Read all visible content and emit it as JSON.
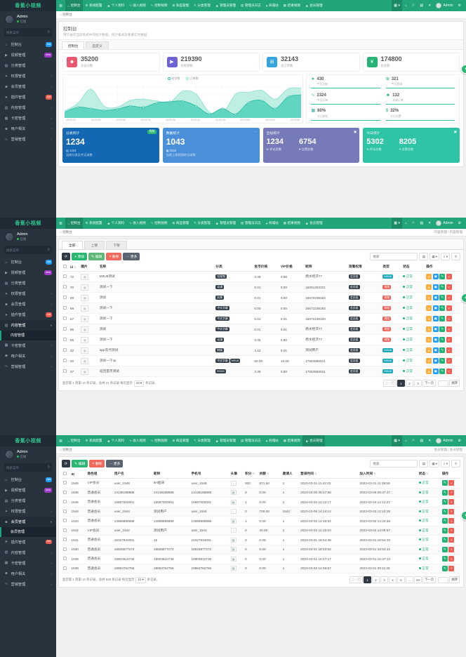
{
  "brand": "香蕉小视频",
  "navbar": {
    "items": [
      {
        "label": "控制台",
        "icon": "home"
      },
      {
        "label": "系统配置",
        "icon": "gear"
      },
      {
        "label": "个人资料",
        "icon": "user"
      },
      {
        "label": "收入视频",
        "icon": "chart"
      },
      {
        "label": "控制视频",
        "icon": "chart"
      },
      {
        "label": "商品管理",
        "icon": "bag"
      },
      {
        "label": "分类管理",
        "icon": "edit"
      },
      {
        "label": "管理员管理",
        "icon": "user"
      },
      {
        "label": "管理员日志",
        "icon": "list"
      },
      {
        "label": "商城站",
        "icon": "heart"
      },
      {
        "label": "结果视频",
        "icon": "grid"
      },
      {
        "label": "会员管理",
        "icon": "user"
      }
    ],
    "right_icons": [
      {
        "name": "apps-menu-icon",
        "glyph": "▦ ▾"
      },
      {
        "name": "home-icon",
        "glyph": "⌂"
      },
      {
        "name": "bell-icon",
        "glyph": "⚐"
      },
      {
        "name": "file-icon",
        "glyph": "▤"
      },
      {
        "name": "close-icon",
        "glyph": "✕"
      }
    ],
    "user": "Admin"
  },
  "sidebar": {
    "user_name": "Admin",
    "user_status": "在线",
    "search_placeholder": "搜索菜单",
    "items": [
      {
        "label": "控制台",
        "icon": "home",
        "badge": "hot",
        "badge_color": "#1e9fff"
      },
      {
        "label": "视频管理",
        "icon": "video",
        "badge": "new",
        "badge_color": "#a038c9"
      },
      {
        "label": "分类管理",
        "icon": "folder"
      },
      {
        "label": "权限管理",
        "icon": "lock",
        "arrow": true
      },
      {
        "label": "会员管理",
        "icon": "users",
        "arrow": true
      },
      {
        "label": "插件管理",
        "icon": "plugin",
        "badge": "hot",
        "badge_color": "#f35b4f"
      },
      {
        "label": "内容管理",
        "icon": "content",
        "arrow": true
      },
      {
        "label": "卡密管理",
        "icon": "card",
        "arrow": true
      },
      {
        "label": "用户相关",
        "icon": "user",
        "arrow": true
      },
      {
        "label": "营销管理",
        "icon": "chart",
        "arrow": true
      }
    ]
  },
  "panels": [
    {
      "nav_active": 0,
      "sidebar": {}
    },
    {
      "nav_active": 0,
      "sidebar": {
        "expanded": 6,
        "sub": [
          "内容管理"
        ],
        "sub_active": 0
      }
    },
    {
      "nav_active": 11,
      "sidebar": {
        "expanded": 4,
        "sub": [
          "会员管理"
        ],
        "sub_active": 0
      }
    }
  ],
  "panel1": {
    "breadcrumb": "控制台",
    "breadcrumb_right": "",
    "page_title": "控制台",
    "page_desc": "用于展示当前系统中的统计数据，统计报表及重要实时数据",
    "tabs": [
      "控制台",
      "自定义"
    ],
    "stats": [
      {
        "value": "35200",
        "label": "总会员数",
        "color": "#e8596f",
        "icon": "users"
      },
      {
        "value": "219390",
        "label": "总视频数",
        "color": "#6e62d4",
        "icon": "video"
      },
      {
        "value": "32143",
        "label": "总订单数",
        "color": "#35a3dc",
        "icon": "cart"
      },
      {
        "value": "174800",
        "label": "总金额",
        "color": "#27b376",
        "icon": "yen"
      }
    ],
    "chart_data": {
      "type": "area",
      "title": "",
      "x": [
        "16:03:22",
        "16:03:26",
        "16:03:30",
        "16:03:34",
        "16:03:38",
        "16:03:42",
        "16:03:46",
        "16:03:50",
        "16:03:54",
        "16:03:58"
      ],
      "series": [
        {
          "name": "成交数",
          "values": [
            14,
            30,
            26,
            20,
            24,
            34,
            30,
            44,
            48,
            50,
            34,
            8,
            26,
            8,
            46,
            52,
            26,
            64,
            70
          ],
          "line_color": "#2fbfa6",
          "fill_color": "#5bd3be"
        },
        {
          "name": "订单数",
          "values": [
            18,
            42,
            88,
            34,
            30,
            52,
            56,
            50,
            46,
            82,
            72,
            14,
            10,
            72,
            78,
            84,
            56,
            90,
            92
          ],
          "line_color": "#8fe0cf",
          "fill_color": "#bceee2"
        }
      ],
      "ylim": [
        0,
        100
      ],
      "grid": true,
      "legend_position": "top"
    },
    "mini_stats": [
      {
        "value": "430",
        "label": "今日注册",
        "icon": "rocket"
      },
      {
        "value": "321",
        "label": "今日登录",
        "icon": "cart"
      },
      {
        "value": "2324",
        "label": "今日订单",
        "icon": "trend"
      },
      {
        "value": "132",
        "label": "本周订单",
        "icon": "users"
      },
      {
        "value": "80%",
        "label": "七日转化",
        "icon": "calc"
      },
      {
        "value": "32%",
        "label": "七日付费",
        "icon": "dollar"
      }
    ],
    "summary_cards": [
      {
        "title": "分类统计",
        "badge": "视频",
        "value": "1234",
        "sub_line1": "1234",
        "sub_line1_icon": "folder",
        "sub_line2": "当前分类总共记录数",
        "color": "#1468b3"
      },
      {
        "title": "数据统计",
        "corner": "more",
        "value": "1043",
        "sub_line1": "2532",
        "sub_line1_icon": "grid",
        "sub_line2": "当前上架视频的记录数",
        "color": "#4a90d9"
      },
      {
        "title": "全站统计",
        "corner": "grid",
        "nums": [
          {
            "value": "1234",
            "label": "评论总数",
            "icon": "comment"
          },
          {
            "value": "6754",
            "label": "点赞总数",
            "icon": "like"
          }
        ],
        "color": "#767ab8"
      },
      {
        "title": "今日统计",
        "corner": "grid",
        "nums": [
          {
            "value": "5302",
            "label": "评论总数",
            "icon": "comment"
          },
          {
            "value": "8205",
            "label": "点赞总数",
            "icon": "like"
          }
        ],
        "color": "#2ec4a5"
      }
    ]
  },
  "table_tools": [
    {
      "name": "detail-view-button",
      "glyph": "▤"
    },
    {
      "name": "columns-button",
      "glyph": "▦ ▾"
    },
    {
      "name": "export-button",
      "glyph": "⇩ ▾"
    },
    {
      "name": "search-button",
      "glyph": "⚲"
    }
  ],
  "panel2": {
    "breadcrumb": "控制台",
    "breadcrumb_right": "内容管理 / 内容管理",
    "tabs": [
      "全部",
      "上架",
      "下架"
    ],
    "toolbar": [
      {
        "name": "refresh-button",
        "icon": "refresh",
        "style": "dark"
      },
      {
        "name": "add-button",
        "label": "添加",
        "icon": "plus",
        "style": "green"
      },
      {
        "name": "edit-button",
        "label": "编辑",
        "icon": "edit",
        "style": "lightgreen"
      },
      {
        "name": "delete-button",
        "label": "删除",
        "icon": "del",
        "style": "red"
      },
      {
        "name": "more-button",
        "label": "更多",
        "icon": "more",
        "style": "gray"
      }
    ],
    "search_placeholder": "搜索",
    "table": {
      "headers": [
        "id",
        "图片",
        "名称",
        "分类",
        "金币价格",
        "VIP价格",
        "昵称",
        "观看权限",
        "类型",
        "状态",
        "操作"
      ],
      "rows": [
        {
          "id": "72",
          "name": "M3U8测试",
          "cats": [
            "短视频"
          ],
          "coin": "3.38",
          "vip": "0.88",
          "nick": "扬水经济77",
          "perm": "会员组",
          "type": "M3U8",
          "type_style": "cyan",
          "status": "正常"
        },
        {
          "id": "70",
          "name": "测试一下",
          "cats": [
            "动漫"
          ],
          "coin": "0.01",
          "vip": "0.00",
          "nick": "15001203321",
          "perm": "会员组",
          "type": "视频",
          "type_style": "red",
          "status": "正常"
        },
        {
          "id": "69",
          "name": "测试",
          "cats": [
            "风景"
          ],
          "coin": "0.01",
          "vip": "0.00",
          "nick": "16672238183",
          "perm": "会员组",
          "type": "视频",
          "type_style": "red",
          "status": "正常"
        },
        {
          "id": "68",
          "name": "测试一下",
          "cats": [
            "中文字幕"
          ],
          "coin": "0.00",
          "vip": "0.00",
          "nick": "16672238183",
          "perm": "会员组",
          "type": "视频",
          "type_style": "red",
          "status": "正常"
        },
        {
          "id": "67",
          "name": "测试一下",
          "cats": [
            "中文字幕"
          ],
          "coin": "0.01",
          "vip": "0.01",
          "nick": "16672238183",
          "perm": "会员组",
          "type": "视频",
          "type_style": "red",
          "status": "正常"
        },
        {
          "id": "66",
          "name": "测试",
          "cats": [
            "中文字幕"
          ],
          "coin": "0.01",
          "vip": "0.01",
          "nick": "扬水经济77",
          "perm": "会员组",
          "type": "视频",
          "type_style": "red",
          "status": "正常"
        },
        {
          "id": "55",
          "name": "测试一下",
          "cats": [
            "动漫"
          ],
          "coin": "3.36",
          "vip": "0.80",
          "nick": "扬水经济77",
          "perm": "会员组",
          "type": "视频",
          "type_style": "red",
          "status": "正常"
        },
        {
          "id": "32",
          "name": "app充代测试",
          "cats": [
            "制服"
          ],
          "coin": "3.12",
          "vip": "0.01",
          "nick": "测试用户",
          "perm": "会员组",
          "type": "M3U8",
          "type_style": "cyan",
          "status": "正常"
        },
        {
          "id": "30",
          "name": "测试一下sp",
          "cats": [
            "中文字幕",
            "M3U8"
          ],
          "coin": "50.00",
          "vip": "10.00",
          "nick": "17563656021",
          "perm": "会员组",
          "type": "M3U8",
          "type_style": "cyan",
          "status": "正常"
        },
        {
          "id": "27",
          "name": "返回首页测试",
          "cats": [
            "M3U8"
          ],
          "coin": "3.36",
          "vip": "0.80",
          "nick": "17563656021",
          "perm": "会员组",
          "type": "M3U8",
          "type_style": "cyan",
          "status": "正常"
        }
      ]
    },
    "footer": {
      "summary_prefix": "显示第 1 到第 10 条记录，总共 21 条记录 每页显示",
      "page_size": "10",
      "summary_suffix": "条记录。",
      "pages": [
        "上一页",
        "1",
        "2",
        "3",
        "下一页"
      ],
      "active_page": "1",
      "jump_label": "跳转"
    }
  },
  "panel3": {
    "breadcrumb": "控制台",
    "breadcrumb_right": "会员管理 / 会员管理",
    "toolbar": [
      {
        "name": "refresh-button",
        "icon": "refresh",
        "style": "dark"
      },
      {
        "name": "edit-button",
        "label": "编辑",
        "icon": "edit",
        "style": "green"
      },
      {
        "name": "delete-button",
        "label": "删除",
        "icon": "del",
        "style": "red"
      },
      {
        "name": "more-button",
        "label": "更多",
        "icon": "more",
        "style": "gray"
      }
    ],
    "search_placeholder": "搜索",
    "table": {
      "headers": [
        "ID",
        "角色组",
        "用户名",
        "昵称",
        "手机号",
        "头像",
        "积分",
        "余额",
        "邀请人",
        "登录时间",
        "加入时间",
        "状态",
        "操作"
      ],
      "rows": [
        {
          "id": "1548",
          "role": "VIP会员",
          "username": "user_1548",
          "nick": "8H图床",
          "phone": "user_1548",
          "avatar": "user",
          "points": "920",
          "balance": "871.50",
          "inviter": "1",
          "login_time": "2023-03-31 11:42:22",
          "join_time": "2023-03-31 11:39:59",
          "status": "正常"
        },
        {
          "id": "1546",
          "role": "普通会员",
          "username": "13138188888",
          "nick": "13138188888",
          "phone": "13138188888",
          "avatar": "img",
          "points": "0",
          "balance": "0.00",
          "inviter": "1",
          "login_time": "2023-03-06 09:47:58",
          "join_time": "2023-03-06 09:47:47",
          "status": "正常"
        },
        {
          "id": "1545",
          "role": "普通会员",
          "username": "15697000001",
          "nick": "15697000001",
          "phone": "15697000001",
          "avatar": "img",
          "points": "1",
          "balance": "0.00",
          "inviter": "1",
          "login_time": "2023-03-04 12:12:17",
          "join_time": "2023-03-04 12:12:07",
          "status": "正常"
        },
        {
          "id": "1544",
          "role": "普通会员",
          "username": "user_1544",
          "nick": "测试用户",
          "phone": "user_1544",
          "avatar": "user",
          "points": "0",
          "balance": "700.00",
          "inviter": "1542",
          "login_time": "2023-03-06 14:24:12",
          "join_time": "2023-03-02 12:10:28",
          "status": "正常"
        },
        {
          "id": "1543",
          "role": "普通会员",
          "username": "13999999999",
          "nick": "13999999999",
          "phone": "13999999999",
          "avatar": "img",
          "points": "1",
          "balance": "0.00",
          "inviter": "1",
          "login_time": "2023-03-02 14:46:54",
          "join_time": "2023-03-02 14:24:28",
          "status": "正常"
        },
        {
          "id": "1542",
          "role": "VIP会员",
          "username": "user_1542",
          "nick": "测试用户",
          "phone": "user_1542",
          "avatar": "user",
          "points": "0",
          "balance": "40.00",
          "inviter": "1",
          "login_time": "2023-03-03 12:16:03",
          "join_time": "2023-03-02 14:09:57",
          "status": "正常"
        },
        {
          "id": "1541",
          "role": "普通会员",
          "username": "15327934001",
          "nick": "15",
          "phone": "15327934001",
          "avatar": "img",
          "points": "0",
          "balance": "0.00",
          "inviter": "1",
          "login_time": "2023-03-01 18:54:38",
          "join_time": "2023-03-01 18:54:33",
          "status": "正常"
        },
        {
          "id": "1540",
          "role": "普通会员",
          "username": "18826877272",
          "nick": "18826877272",
          "phone": "18026877272",
          "avatar": "img",
          "points": "0",
          "balance": "0.00",
          "inviter": "1",
          "login_time": "2023-03-01 18:53:52",
          "join_time": "2023-03-01 18:53:42",
          "status": "正常"
        },
        {
          "id": "1539",
          "role": "普通会员",
          "username": "19903810736",
          "nick": "19903810736",
          "phone": "19903810736",
          "avatar": "img",
          "points": "0",
          "balance": "0.00",
          "inviter": "1",
          "login_time": "2023-03-01 16:47:17",
          "join_time": "2023-03-01 16:47:13",
          "status": "正常"
        },
        {
          "id": "1538",
          "role": "普通会员",
          "username": "18963762766",
          "nick": "18963762766",
          "phone": "18963762766",
          "avatar": "img",
          "points": "0",
          "balance": "0.00",
          "inviter": "1",
          "login_time": "2023-03-02 14:56:57",
          "join_time": "2023-03-01 09:11:25",
          "status": "正常"
        }
      ]
    },
    "footer": {
      "summary_prefix": "显示第 1 到第 10 条记录，总共 938 条记录 每页显示",
      "page_size": "10",
      "summary_suffix": "条记录。",
      "pages": [
        "上一页",
        "1",
        "2",
        "3",
        "4",
        "5",
        "...",
        "94",
        "下一页"
      ],
      "active_page": "1",
      "jump_label": "跳转"
    }
  }
}
